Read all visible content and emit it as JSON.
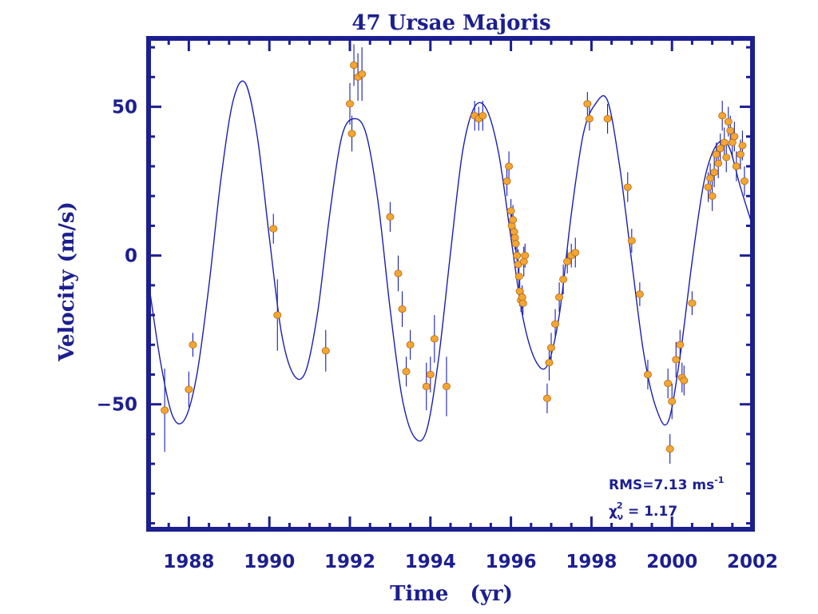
{
  "chart_data": {
    "type": "scatter",
    "title": "47 Ursae Majoris",
    "xlabel": "Time   (yr)",
    "ylabel": "Velocity (m/s)",
    "xlim": [
      1987.0,
      2002.0
    ],
    "ylim": [
      -92,
      73
    ],
    "x_ticks": [
      1988,
      1990,
      1992,
      1994,
      1996,
      1998,
      2000,
      2002
    ],
    "y_ticks": [
      -50,
      0,
      50
    ],
    "grid": false,
    "colors": {
      "axis": "#1c1f8f",
      "fit": "#1a1fb0",
      "points": "#f5a533",
      "point_edge": "#b06b10",
      "errorbar": "#1a1fb0"
    },
    "annotations": {
      "rms": "RMS=7.13 ms",
      "rms_sup": "-1",
      "chi": "χ",
      "chi_sup": "2",
      "chi_sub": "ν",
      "chi_value": " = 1.17"
    },
    "fit_curve": {
      "name": "",
      "x": [
        1987.0,
        1987.3,
        1987.6,
        1987.9,
        1988.2,
        1988.5,
        1988.8,
        1989.1,
        1989.4,
        1989.7,
        1990.0,
        1990.3,
        1990.6,
        1990.9,
        1991.2,
        1991.5,
        1991.8,
        1992.1,
        1992.4,
        1992.7,
        1993.0,
        1993.3,
        1993.6,
        1993.9,
        1994.2,
        1994.5,
        1994.8,
        1995.1,
        1995.4,
        1995.7,
        1996.0,
        1996.3,
        1996.6,
        1996.9,
        1997.2,
        1997.5,
        1997.8,
        1998.1,
        1998.4,
        1998.7,
        1999.0,
        1999.3,
        1999.6,
        1999.9,
        2000.2,
        2000.5,
        2000.8,
        2001.1,
        2001.4,
        2001.7,
        2002.0
      ],
      "y": [
        -9,
        -36,
        -54,
        -55,
        -40,
        -10,
        26,
        52,
        58,
        40,
        6,
        -26,
        -40,
        -39,
        -19,
        14,
        40,
        46,
        41,
        18,
        -18,
        -48,
        -61,
        -59,
        -35,
        1,
        35,
        50,
        49,
        34,
        6,
        -21,
        -35,
        -37,
        -20,
        14,
        41,
        51,
        52,
        30,
        -2,
        -33,
        -51,
        -56,
        -34,
        -2,
        25,
        37,
        37,
        23,
        10
      ]
    },
    "series": [
      {
        "name": "",
        "x": [
          1987.4,
          1988.0,
          1988.1,
          1990.1,
          1990.2,
          1991.4,
          1992.0,
          1992.05,
          1992.1,
          1992.2,
          1992.3,
          1993.0,
          1993.2,
          1993.3,
          1993.4,
          1993.5,
          1993.9,
          1994.0,
          1994.1,
          1994.4,
          1995.1,
          1995.2,
          1995.3,
          1995.9,
          1995.95,
          1996.0,
          1996.02,
          1996.05,
          1996.08,
          1996.1,
          1996.12,
          1996.15,
          1996.18,
          1996.2,
          1996.22,
          1996.25,
          1996.28,
          1996.3,
          1996.32,
          1996.35,
          1996.9,
          1996.95,
          1997.0,
          1997.1,
          1997.2,
          1997.3,
          1997.4,
          1997.5,
          1997.6,
          1997.9,
          1997.95,
          1998.4,
          1998.9,
          1999.0,
          1999.2,
          1999.4,
          1999.9,
          1999.95,
          2000.0,
          2000.1,
          2000.2,
          2000.25,
          2000.3,
          2000.5,
          2000.9,
          2000.95,
          2001.0,
          2001.05,
          2001.1,
          2001.15,
          2001.2,
          2001.25,
          2001.3,
          2001.35,
          2001.4,
          2001.45,
          2001.5,
          2001.55,
          2001.6,
          2001.7,
          2001.75,
          2001.8
        ],
        "y": [
          -52,
          -45,
          -30,
          9,
          -20,
          -32,
          51,
          41,
          64,
          60,
          61,
          13,
          -6,
          -18,
          -39,
          -30,
          -44,
          -40,
          -28,
          -44,
          47,
          46,
          47,
          25,
          30,
          15,
          10,
          12,
          8,
          6,
          4,
          0,
          -3,
          -7,
          -12,
          -15,
          -14,
          -16,
          -2,
          0,
          -48,
          -36,
          -31,
          -23,
          -14,
          -8,
          -2,
          0,
          1,
          51,
          46,
          46,
          23,
          5,
          -13,
          -40,
          -43,
          -65,
          -49,
          -35,
          -30,
          -41,
          -42,
          -16,
          23,
          26,
          20,
          28,
          34,
          31,
          36,
          47,
          38,
          33,
          45,
          42,
          38,
          40,
          30,
          34,
          37,
          25
        ],
        "yerr": [
          14,
          6,
          4,
          5,
          12,
          7,
          7,
          6,
          7,
          8,
          9,
          5,
          6,
          6,
          5,
          5,
          8,
          6,
          8,
          10,
          5,
          4,
          5,
          5,
          5,
          4,
          4,
          5,
          4,
          4,
          5,
          4,
          5,
          4,
          5,
          4,
          4,
          4,
          5,
          4,
          5,
          6,
          5,
          5,
          5,
          5,
          4,
          4,
          5,
          4,
          4,
          5,
          5,
          4,
          4,
          5,
          5,
          5,
          6,
          6,
          5,
          5,
          5,
          4,
          5,
          5,
          5,
          5,
          4,
          5,
          5,
          5,
          5,
          5,
          5,
          5,
          5,
          5,
          5,
          5,
          5,
          5
        ]
      }
    ]
  }
}
